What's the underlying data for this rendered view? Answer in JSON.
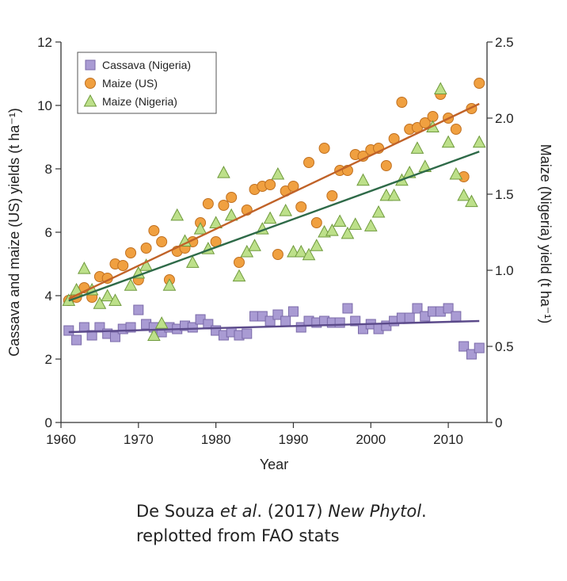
{
  "chart_data": {
    "type": "scatter",
    "xlabel": "Year",
    "ylabel": "Cassava and maize (US) yields (t ha⁻¹)",
    "y2label": "Maize (Nigeria) yield (t ha⁻¹)",
    "xlim": [
      1960,
      2015
    ],
    "ylim": [
      0,
      12
    ],
    "y2lim": [
      0,
      2.5
    ],
    "x_ticks": [
      1960,
      1970,
      1980,
      1990,
      2000,
      2010
    ],
    "y_ticks": [
      0,
      2,
      4,
      6,
      8,
      10,
      12
    ],
    "y2_ticks": [
      "0",
      "0.5",
      "1.0",
      "1.5",
      "2.0",
      "2.5"
    ],
    "legend_position": "top-left",
    "grid": false,
    "series": [
      {
        "name": "Cassava (Nigeria)",
        "axis": "left",
        "marker": "square",
        "color": "#a99bd3",
        "edge": "#7a6aa8",
        "line_color": "#5b4a8a",
        "trend": {
          "x": [
            1961,
            2014
          ],
          "y": [
            2.85,
            3.2
          ]
        },
        "x": [
          1961,
          1962,
          1963,
          1964,
          1965,
          1966,
          1967,
          1968,
          1969,
          1970,
          1971,
          1972,
          1973,
          1974,
          1975,
          1976,
          1977,
          1978,
          1979,
          1980,
          1981,
          1982,
          1983,
          1984,
          1985,
          1986,
          1987,
          1988,
          1989,
          1990,
          1991,
          1992,
          1993,
          1994,
          1995,
          1996,
          1997,
          1998,
          1999,
          2000,
          2001,
          2002,
          2003,
          2004,
          2005,
          2006,
          2007,
          2008,
          2009,
          2010,
          2011,
          2012,
          2013,
          2014
        ],
        "y": [
          2.9,
          2.6,
          3.0,
          2.75,
          3.0,
          2.8,
          2.7,
          2.95,
          3.0,
          3.55,
          3.1,
          3.0,
          2.85,
          3.0,
          2.95,
          3.05,
          3.0,
          3.25,
          3.1,
          2.9,
          2.75,
          2.85,
          2.75,
          2.8,
          3.35,
          3.35,
          3.2,
          3.4,
          3.2,
          3.5,
          3.0,
          3.2,
          3.15,
          3.2,
          3.15,
          3.15,
          3.6,
          3.2,
          2.95,
          3.1,
          2.95,
          3.05,
          3.2,
          3.3,
          3.3,
          3.6,
          3.35,
          3.5,
          3.5,
          3.6,
          3.35,
          2.4,
          2.15,
          2.35
        ]
      },
      {
        "name": "Maize (US)",
        "axis": "left",
        "marker": "circle",
        "color": "#f0a040",
        "edge": "#c07020",
        "line_color": "#c06228",
        "trend": {
          "x": [
            1961,
            2014
          ],
          "y": [
            3.9,
            10.05
          ]
        },
        "x": [
          1961,
          1962,
          1963,
          1964,
          1965,
          1966,
          1967,
          1968,
          1969,
          1970,
          1971,
          1972,
          1973,
          1974,
          1975,
          1976,
          1977,
          1978,
          1979,
          1980,
          1981,
          1982,
          1983,
          1984,
          1985,
          1986,
          1987,
          1988,
          1989,
          1990,
          1991,
          1992,
          1993,
          1994,
          1995,
          1996,
          1997,
          1998,
          1999,
          2000,
          2001,
          2002,
          2003,
          2004,
          2005,
          2006,
          2007,
          2008,
          2009,
          2010,
          2011,
          2012,
          2013,
          2014
        ],
        "y": [
          3.85,
          3.95,
          4.25,
          3.95,
          4.6,
          4.55,
          5.0,
          4.95,
          5.35,
          4.5,
          5.5,
          6.05,
          5.7,
          4.5,
          5.4,
          5.5,
          5.7,
          6.3,
          6.9,
          5.7,
          6.85,
          7.1,
          5.05,
          6.7,
          7.35,
          7.45,
          7.5,
          5.3,
          7.3,
          7.45,
          6.8,
          8.2,
          6.3,
          8.65,
          7.15,
          7.95,
          7.95,
          8.45,
          8.4,
          8.6,
          8.65,
          8.1,
          8.95,
          10.1,
          9.25,
          9.3,
          9.45,
          9.65,
          10.35,
          9.6,
          9.25,
          7.75,
          9.9,
          10.7
        ]
      },
      {
        "name": "Maize (Nigeria)",
        "axis": "right",
        "marker": "triangle",
        "color": "#bde08a",
        "edge": "#6f9a3c",
        "line_color": "#2e6a48",
        "trend": {
          "x": [
            1961,
            2014
          ],
          "y": [
            0.8,
            1.78
          ]
        },
        "x": [
          1961,
          1962,
          1963,
          1964,
          1965,
          1966,
          1967,
          1969,
          1970,
          1971,
          1972,
          1973,
          1974,
          1975,
          1976,
          1977,
          1978,
          1979,
          1980,
          1981,
          1982,
          1983,
          1984,
          1985,
          1986,
          1987,
          1988,
          1989,
          1990,
          1991,
          1992,
          1993,
          1994,
          1995,
          1996,
          1997,
          1998,
          1999,
          2000,
          2001,
          2002,
          2003,
          2004,
          2005,
          2006,
          2007,
          2008,
          2009,
          2010,
          2011,
          2012,
          2013,
          2014
        ],
        "y": [
          0.8,
          0.87,
          1.01,
          0.87,
          0.78,
          0.83,
          0.8,
          0.9,
          0.98,
          1.03,
          0.57,
          0.65,
          0.9,
          1.36,
          1.19,
          1.05,
          1.27,
          1.14,
          1.31,
          1.64,
          1.36,
          0.96,
          1.12,
          1.16,
          1.27,
          1.34,
          1.63,
          1.39,
          1.12,
          1.12,
          1.1,
          1.16,
          1.25,
          1.26,
          1.32,
          1.24,
          1.3,
          1.59,
          1.29,
          1.38,
          1.49,
          1.49,
          1.59,
          1.64,
          1.8,
          1.68,
          1.94,
          2.19,
          1.84,
          1.63,
          1.49,
          1.45,
          1.84
        ]
      }
    ]
  },
  "citation": {
    "line1_authors": "De Souza ",
    "line1_etal": "et al",
    "line1_year": ". (2017) ",
    "line1_journal": "New Phytol",
    "line1_end": ".",
    "line2": "replotted from FAO stats"
  }
}
